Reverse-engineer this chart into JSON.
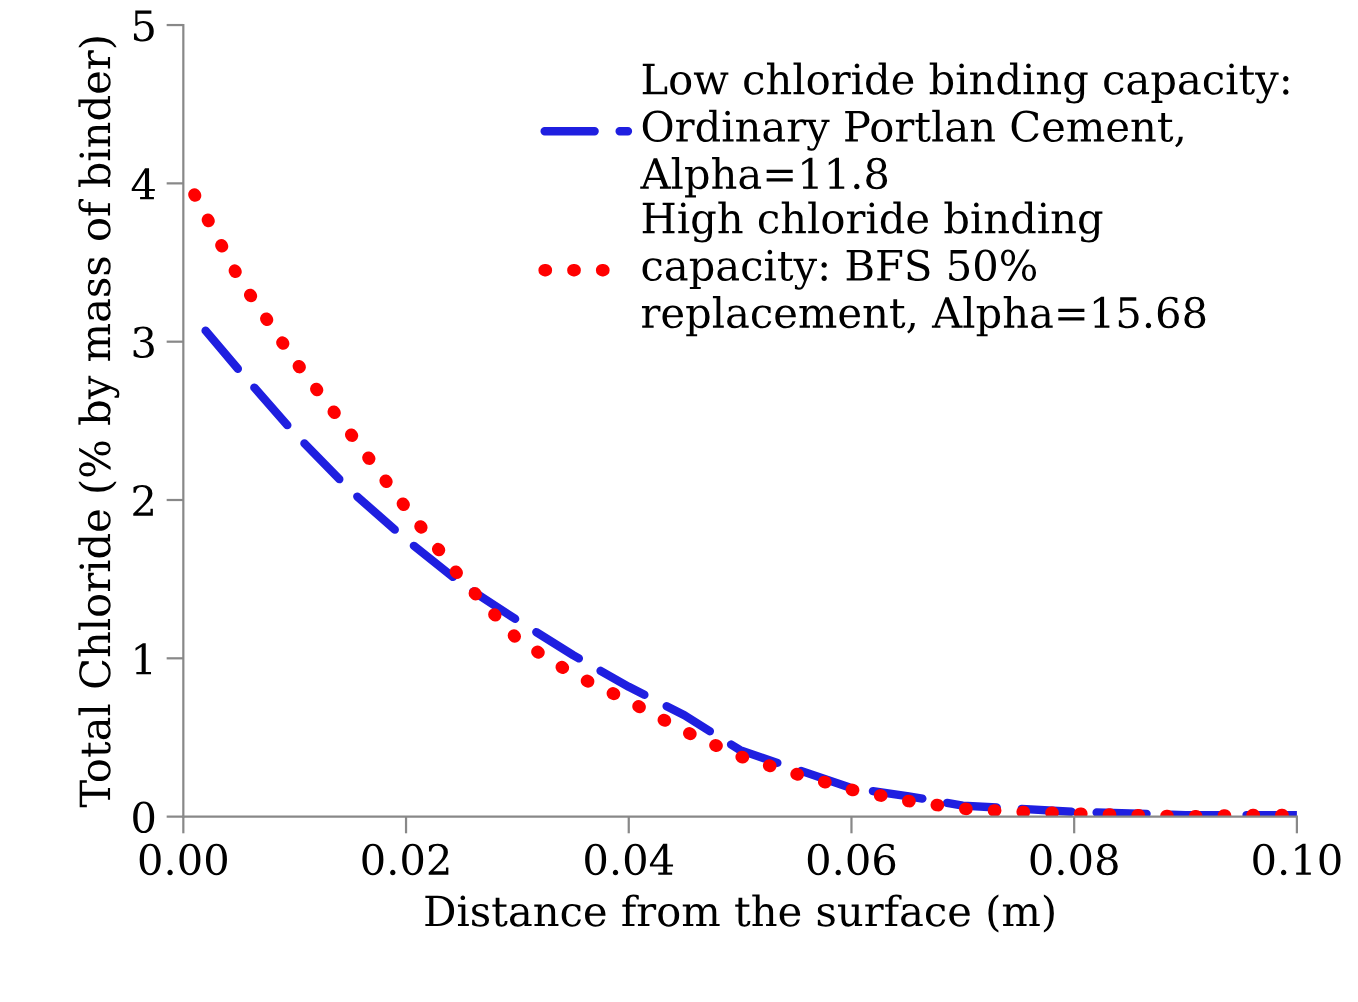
{
  "chart_data": {
    "type": "line",
    "xlabel": "Distance from the surface (m)",
    "ylabel": "Total Chloride (% by mass of binder)",
    "xlim": [
      0,
      0.1
    ],
    "xticks": [
      {
        "value": 0,
        "label": "0.00"
      },
      {
        "value": 0.02,
        "label": "0.02"
      },
      {
        "value": 0.04,
        "label": "0.04"
      },
      {
        "value": 0.06,
        "label": "0.06"
      },
      {
        "value": 0.08,
        "label": "0.08"
      },
      {
        "value": 0.1,
        "label": "0.10"
      }
    ],
    "ylim": [
      0,
      5
    ],
    "yticks": [
      0,
      1,
      2,
      3,
      4,
      5
    ],
    "grid": false,
    "legend": "top right",
    "marker": "none",
    "series": [
      {
        "name": "Low chloride binding capacity: Ordinary Portlan Cement, Alpha=11.8",
        "color": "#1f1fe0",
        "line_style": "dashed",
        "x": [
          0.002,
          0.005,
          0.01,
          0.015,
          0.02,
          0.025,
          0.03,
          0.035,
          0.04,
          0.045,
          0.05,
          0.055,
          0.06,
          0.065,
          0.07,
          0.075,
          0.08,
          0.085,
          0.09,
          0.095,
          0.1
        ],
        "values": [
          3.07,
          2.82,
          2.42,
          2.06,
          1.75,
          1.47,
          1.24,
          1.02,
          0.82,
          0.64,
          0.42,
          0.3,
          0.18,
          0.13,
          0.07,
          0.05,
          0.03,
          0.02,
          0.01,
          0.01,
          0.01
        ]
      },
      {
        "name": "High chloride binding capacity: BFS 50% replacement, Alpha=15.68",
        "color": "#ff0000",
        "line_style": "dotted",
        "x": [
          0.001,
          0.005,
          0.01,
          0.015,
          0.02,
          0.025,
          0.03,
          0.035,
          0.04,
          0.045,
          0.05,
          0.055,
          0.06,
          0.065,
          0.07,
          0.075,
          0.08,
          0.085,
          0.09,
          0.095,
          0.1
        ],
        "values": [
          3.93,
          3.4,
          2.88,
          2.42,
          1.95,
          1.5,
          1.12,
          0.9,
          0.73,
          0.54,
          0.38,
          0.27,
          0.17,
          0.1,
          0.05,
          0.03,
          0.02,
          0.01,
          0.0,
          0.01,
          0.01
        ]
      }
    ]
  }
}
